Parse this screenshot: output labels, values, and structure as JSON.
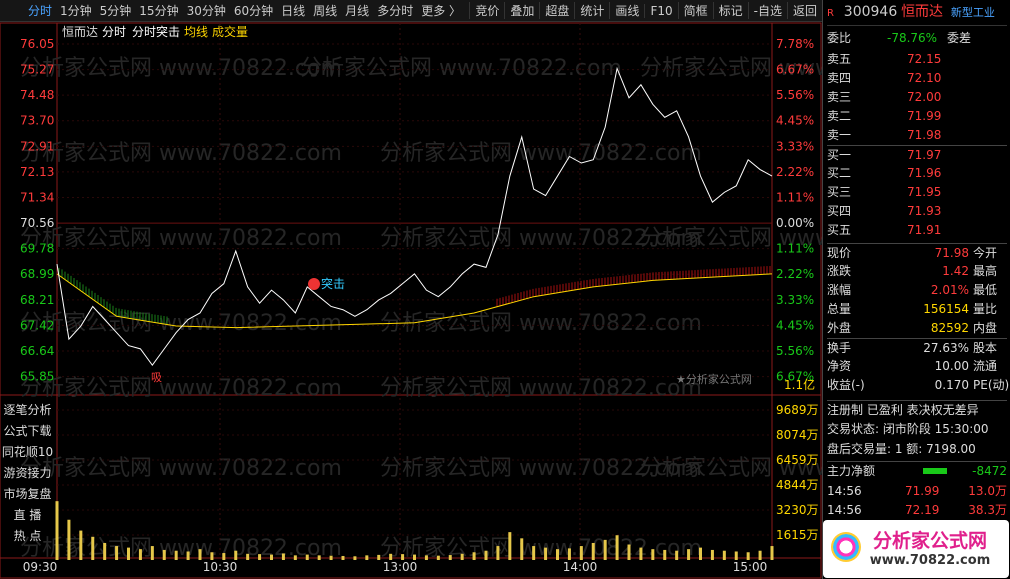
{
  "toolbar": {
    "periods": [
      "分时",
      "1分钟",
      "5分钟",
      "15分钟",
      "30分钟",
      "60分钟",
      "日线",
      "周线",
      "月线",
      "多分时",
      "更多 〉"
    ],
    "buttons": [
      "竞价",
      "叠加",
      "超盘",
      "统计",
      "画线",
      "F10",
      "简框",
      "标记",
      "-自选",
      "返回"
    ]
  },
  "legend": {
    "name": "恒而达",
    "items": [
      "分时",
      "分时突击",
      "均线",
      "成交量"
    ]
  },
  "price_ticks": [
    "76.05",
    "75.27",
    "74.48",
    "73.70",
    "72.91",
    "72.13",
    "71.34",
    "70.56",
    "69.78",
    "68.99",
    "68.21",
    "67.42",
    "66.64",
    "65.85"
  ],
  "pct_ticks": [
    "7.78%",
    "6.67%",
    "5.56%",
    "4.45%",
    "3.33%",
    "2.22%",
    "1.11%",
    "0.00%",
    "1.11%",
    "2.22%",
    "3.33%",
    "4.45%",
    "5.56%",
    "6.67%"
  ],
  "pct_bottom": "1.1亿",
  "volume_ticks": [
    "9689万",
    "8074万",
    "6459万",
    "4844万",
    "3230万",
    "1615万"
  ],
  "time_labels": [
    "09:30",
    "10:30",
    "13:00",
    "14:00",
    "15:00"
  ],
  "annotations": {
    "breakout": "突击",
    "absorb": "吸",
    "source": "★分析家公式网"
  },
  "side_buttons": [
    "逐笔分析",
    "公式下载",
    "同花顺10",
    "游资接力",
    "市场复盘",
    "直 播",
    "热 点"
  ],
  "watermark": "分析家公式网 www.70822.com",
  "intraday": {
    "price": [
      69.3,
      67.0,
      67.4,
      68.0,
      67.6,
      67.2,
      66.8,
      66.7,
      66.2,
      66.7,
      67.2,
      67.6,
      67.8,
      68.4,
      68.7,
      69.7,
      68.6,
      68.1,
      68.5,
      68.2,
      67.8,
      68.6,
      68.3,
      68.0,
      67.9,
      67.7,
      67.9,
      68.2,
      68.4,
      68.7,
      69.0,
      68.5,
      68.3,
      68.6,
      69.0,
      69.3,
      69.2,
      70.2,
      72.0,
      73.2,
      71.6,
      71.4,
      72.0,
      72.6,
      72.4,
      72.5,
      73.5,
      75.3,
      74.4,
      74.8,
      74.2,
      73.8,
      74.0,
      73.2,
      72.0,
      71.2,
      71.5,
      71.7,
      72.5,
      72.2,
      72.0
    ],
    "avg": [
      69.0,
      67.7,
      67.4,
      67.35,
      67.4,
      67.45,
      67.5,
      67.8,
      68.3,
      68.6,
      68.8,
      68.9,
      69.0
    ],
    "volume": [
      3800,
      2600,
      1900,
      1500,
      1100,
      900,
      800,
      700,
      900,
      650,
      600,
      550,
      700,
      500,
      450,
      600,
      400,
      380,
      350,
      420,
      300,
      350,
      300,
      280,
      260,
      240,
      300,
      330,
      400,
      380,
      350,
      300,
      280,
      320,
      400,
      500,
      600,
      900,
      1800,
      1400,
      900,
      800,
      700,
      750,
      900,
      1100,
      1300,
      1600,
      1000,
      800,
      700,
      650,
      600,
      700,
      800,
      650,
      600,
      550,
      500,
      600,
      900
    ]
  },
  "quote": {
    "flag": "R",
    "code": "300946",
    "name": "恒而达",
    "sector": "新型工业",
    "ratio_label": "委比",
    "ratio": "-78.76%",
    "diff_label": "委差",
    "book": [
      [
        "卖五",
        "72.15"
      ],
      [
        "卖四",
        "72.10"
      ],
      [
        "卖三",
        "72.00"
      ],
      [
        "卖二",
        "71.99"
      ],
      [
        "卖一",
        "71.98"
      ],
      [
        "买一",
        "71.97"
      ],
      [
        "买二",
        "71.96"
      ],
      [
        "买三",
        "71.95"
      ],
      [
        "买四",
        "71.93"
      ],
      [
        "买五",
        "71.91"
      ]
    ],
    "stats": [
      [
        "现价",
        "71.98",
        "今开"
      ],
      [
        "涨跌",
        "1.42",
        "最高"
      ],
      [
        "涨幅",
        "2.01%",
        "最低"
      ],
      [
        "总量",
        "156154",
        "量比"
      ],
      [
        "外盘",
        "82592",
        "内盘"
      ],
      [
        "换手",
        "27.63%",
        "股本"
      ],
      [
        "净资",
        "10.00",
        "流通"
      ],
      [
        "收益(-)",
        "0.170",
        "PE(动)"
      ]
    ],
    "info": [
      "注册制 已盈利 表决权无差异",
      "交易状态: 闭市阶段 15:30:00",
      "盘后交易量: 1  额: 7198.00"
    ],
    "main_label": "主力净额",
    "main_value": "-8472",
    "trades": [
      [
        "14:56",
        "71.99",
        "13.0万"
      ],
      [
        "14:56",
        "72.19",
        "38.3万"
      ]
    ],
    "logo": "分析家公式网",
    "logo_url": "www.70822.com"
  }
}
